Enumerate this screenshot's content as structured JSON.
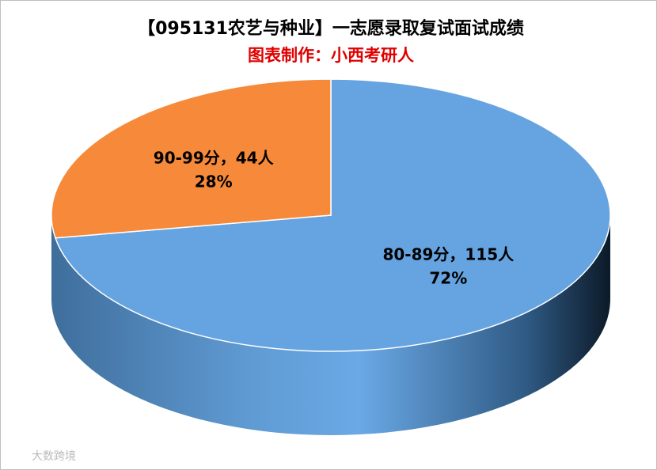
{
  "chart_data": {
    "type": "pie",
    "title": "【095131农艺与种业】一志愿录取复试面试成绩",
    "subtitle": "图表制作：小西考研人",
    "values": [
      115,
      44
    ],
    "value_labels": [
      "80-89分，115人",
      "90-99分，44人"
    ],
    "percents": [
      72,
      28
    ],
    "percent_labels": [
      "72%",
      "28%"
    ],
    "colors": [
      "#65a4e0",
      "#f68a3a"
    ],
    "watermark": "大数跨境"
  }
}
